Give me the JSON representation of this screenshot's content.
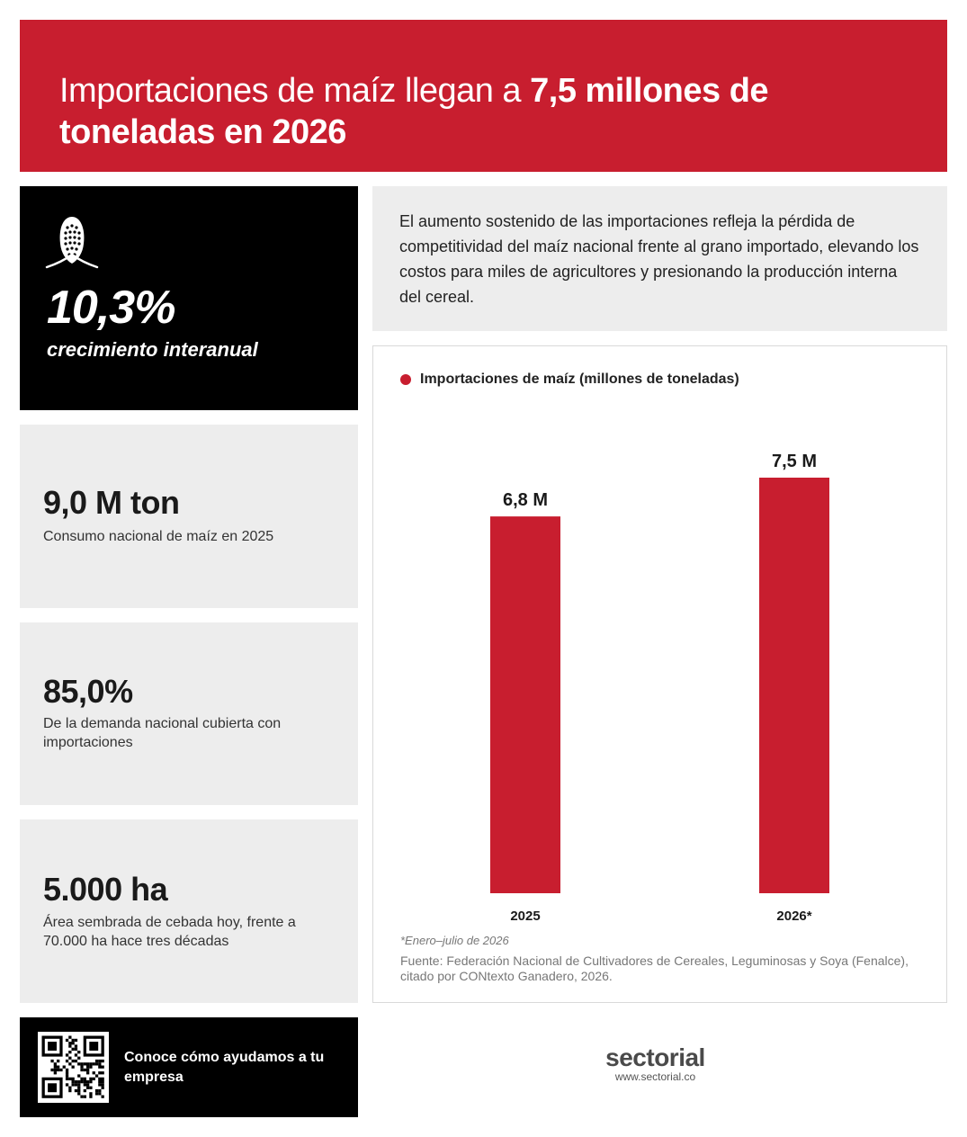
{
  "header": {
    "title_part1": "Importaciones de maíz llegan a ",
    "title_part2": "7,5 millones de toneladas en 2026"
  },
  "kpi_main": {
    "icon": "corn-icon",
    "value": "10,3%",
    "label": "crecimiento interanual"
  },
  "stats": [
    {
      "value": "9,0 M ton",
      "label": "Consumo nacional de maíz en 2025"
    },
    {
      "value": "85,0%",
      "label": "De la demanda nacional cubierta con importaciones"
    },
    {
      "value": "5.000 ha",
      "label": "Área sembrada de cebada hoy, frente a 70.000 ha hace tres décadas"
    }
  ],
  "description": "El aumento sostenido de las importaciones refleja la pérdida de competitividad del maíz nacional frente al grano importado, elevando los costos para miles de agricultores y presionando la producción interna del cereal.",
  "chart_data": {
    "type": "bar",
    "categories": [
      "2025",
      "2026*"
    ],
    "series": [
      {
        "name": "Importaciones de maíz (millones de toneladas)",
        "values": [
          6.8,
          7.5
        ],
        "color": "#c81e2f"
      }
    ],
    "data_labels": [
      "6,8 M",
      "7,5 M"
    ],
    "ylim": [
      0,
      7.5
    ],
    "grid": false,
    "legend": "top-left"
  },
  "chart_note": "*Enero–julio de 2026",
  "chart_source": "Fuente: Federación Nacional de Cultivadores de Cereales, Leguminosas y Soya (Fenalce), citado por CONtexto Ganadero, 2026.",
  "cta": {
    "icon": "qr-code-icon",
    "text": "Conoce cómo ayudamos a tu empresa"
  },
  "brand": {
    "name": "sectorial",
    "url": "www.sectorial.co"
  },
  "colors": {
    "accent": "#c81e2f",
    "dark": "#000000",
    "panel": "#ededed"
  }
}
